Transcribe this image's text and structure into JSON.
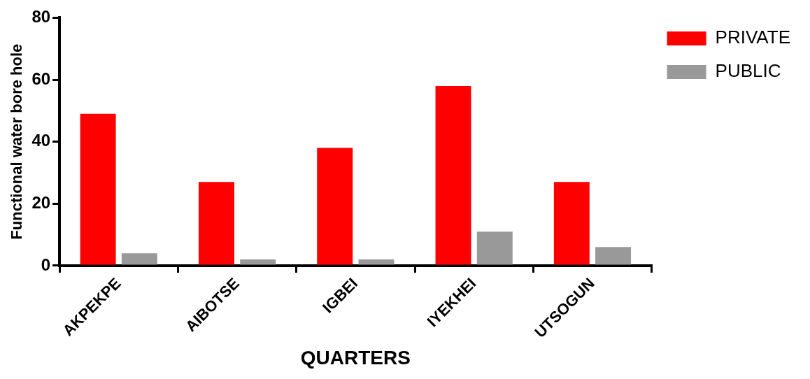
{
  "chart_data": {
    "type": "bar",
    "xlabel": "QUARTERS",
    "ylabel": "Functional water bore hole",
    "categories": [
      "AKPEKPE",
      "AIBOTSE",
      "IGBEI",
      "IYEKHEI",
      "UTSOGUN"
    ],
    "series": [
      {
        "name": "PRIVATE",
        "color": "#ff0000",
        "values": [
          49,
          27,
          38,
          58,
          27
        ]
      },
      {
        "name": "PUBLIC",
        "color": "#999999",
        "values": [
          4,
          2,
          2,
          11,
          6
        ]
      }
    ],
    "ylim": [
      0,
      80
    ],
    "yticks": [
      0,
      20,
      40,
      60,
      80
    ],
    "grid": false,
    "legend": "top right"
  }
}
